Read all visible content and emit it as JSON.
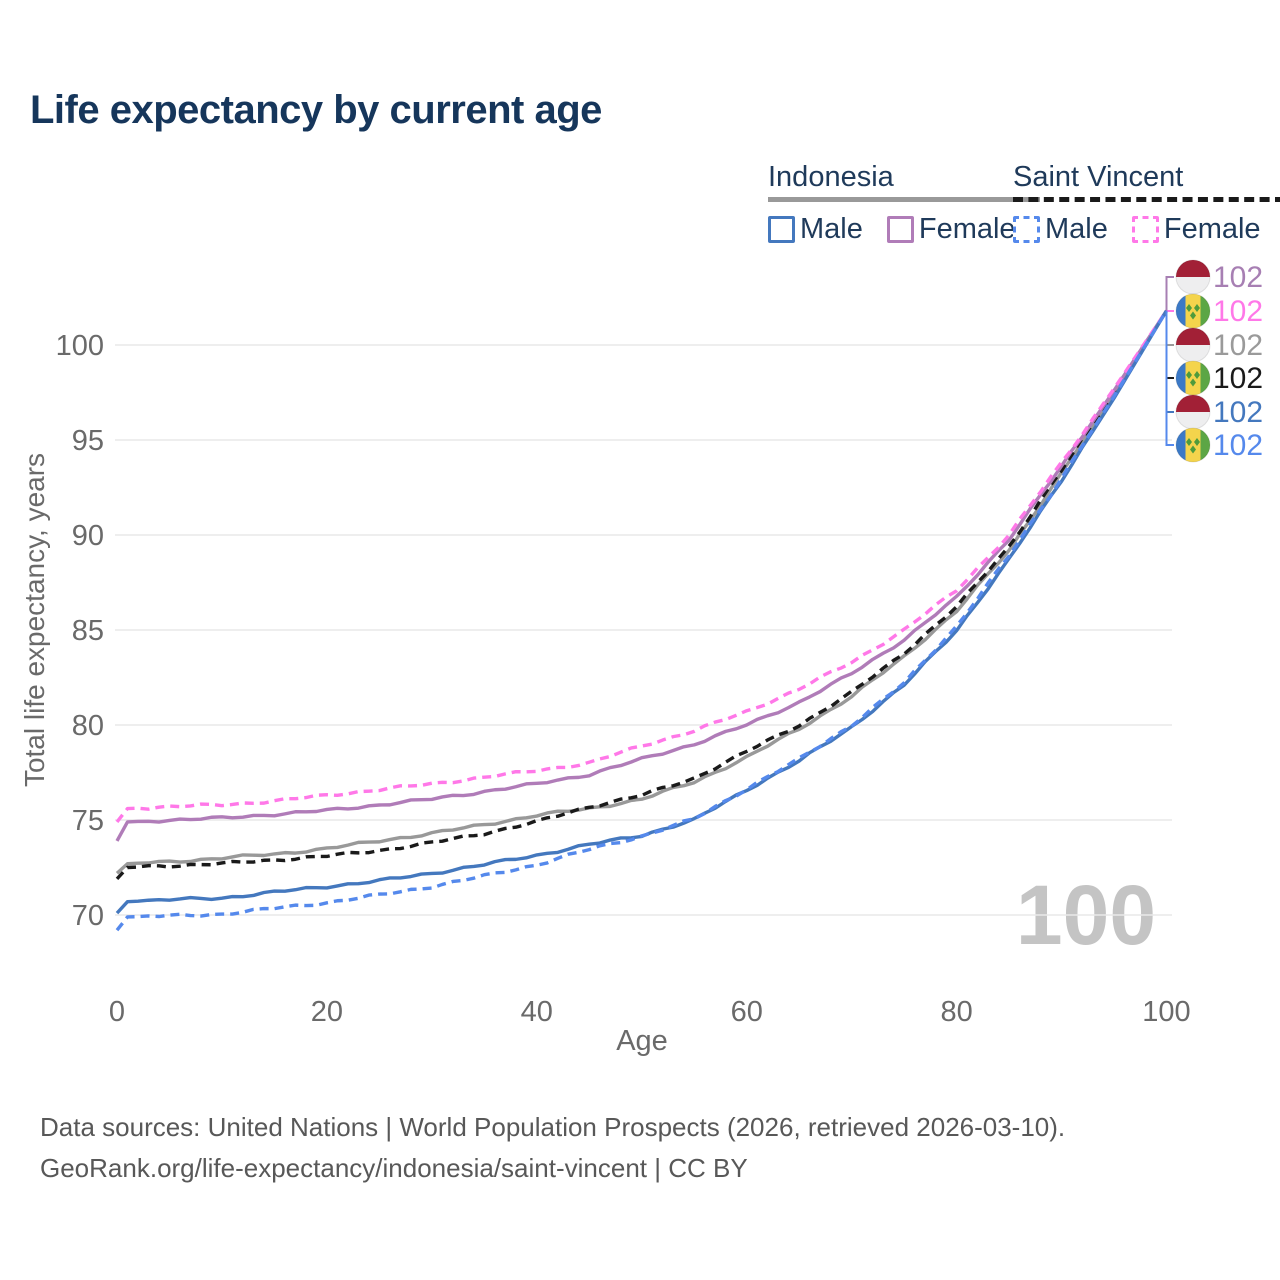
{
  "title": "Life expectancy by current age",
  "legend": {
    "groups": [
      {
        "title": "Indonesia",
        "line_style": "solid",
        "line_color": "#999999",
        "items": [
          {
            "label": "Male",
            "color": "#4478BE",
            "line_style": "solid"
          },
          {
            "label": "Female",
            "color": "#B07CB8",
            "line_style": "solid"
          }
        ]
      },
      {
        "title": "Saint Vincent",
        "line_style": "dashed",
        "line_color": "#1A1A1A",
        "items": [
          {
            "label": "Male",
            "color": "#5589EC",
            "line_style": "dashed"
          },
          {
            "label": "Female",
            "color": "#FF78E8",
            "line_style": "dashed"
          }
        ]
      }
    ]
  },
  "chart_data": {
    "type": "line",
    "title": "Life expectancy by current age",
    "xlabel": "Age",
    "ylabel": "Total life expectancy, years",
    "xlim": [
      0,
      100
    ],
    "ylim": [
      69,
      102
    ],
    "xticks": [
      0,
      20,
      40,
      60,
      80,
      100
    ],
    "yticks": [
      70,
      75,
      80,
      85,
      90,
      95,
      100
    ],
    "grid": "horizontal",
    "watermark": "100",
    "x": [
      0,
      1,
      5,
      10,
      15,
      20,
      25,
      30,
      35,
      40,
      45,
      50,
      55,
      60,
      65,
      70,
      75,
      80,
      85,
      90,
      95,
      100
    ],
    "series": [
      {
        "name": "Indonesia Total",
        "country": "Indonesia",
        "sex": "Total",
        "color": "#999999",
        "dash": "solid",
        "values": [
          72.2,
          72.7,
          72.8,
          73.0,
          73.2,
          73.5,
          73.9,
          74.3,
          74.75,
          75.25,
          75.6,
          76.1,
          77.0,
          78.3,
          79.8,
          81.5,
          83.6,
          86.0,
          89.2,
          93.25,
          97.4,
          101.8
        ]
      },
      {
        "name": "Saint Vincent Total",
        "country": "Saint Vincent",
        "sex": "Total",
        "color": "#1A1A1A",
        "dash": "dashed",
        "values": [
          71.9,
          72.5,
          72.6,
          72.7,
          72.9,
          73.1,
          73.4,
          73.8,
          74.3,
          74.9,
          75.7,
          76.3,
          77.2,
          78.6,
          80.0,
          81.7,
          83.8,
          86.2,
          89.4,
          93.4,
          97.5,
          101.8
        ]
      },
      {
        "name": "Indonesia Female",
        "country": "Indonesia",
        "sex": "Female",
        "color": "#B07CB8",
        "dash": "solid",
        "values": [
          73.9,
          74.9,
          75.0,
          75.1,
          75.3,
          75.5,
          75.8,
          76.1,
          76.5,
          76.9,
          77.4,
          78.2,
          79.0,
          80.0,
          81.2,
          82.7,
          84.5,
          86.7,
          89.8,
          93.6,
          97.6,
          101.8
        ]
      },
      {
        "name": "Saint Vincent Female",
        "country": "Saint Vincent",
        "sex": "Female",
        "color": "#FF78E8",
        "dash": "dashed",
        "values": [
          74.9,
          75.6,
          75.7,
          75.8,
          76.0,
          76.3,
          76.6,
          76.9,
          77.25,
          77.6,
          78.0,
          78.9,
          79.7,
          80.7,
          81.9,
          83.3,
          85.0,
          87.1,
          90.0,
          93.8,
          97.7,
          101.8
        ]
      },
      {
        "name": "Indonesia Male",
        "country": "Indonesia",
        "sex": "Male",
        "color": "#4478BE",
        "dash": "solid",
        "values": [
          70.1,
          70.7,
          70.8,
          70.9,
          71.2,
          71.5,
          71.8,
          72.2,
          72.65,
          73.15,
          73.7,
          74.2,
          75.0,
          76.6,
          78.1,
          79.9,
          82.1,
          85.0,
          88.7,
          92.9,
          97.2,
          101.8
        ]
      },
      {
        "name": "Saint Vincent Male",
        "country": "Saint Vincent",
        "sex": "Male",
        "color": "#5589EC",
        "dash": "dashed",
        "values": [
          69.2,
          69.9,
          69.95,
          70.05,
          70.35,
          70.65,
          71.05,
          71.5,
          72.05,
          72.65,
          73.45,
          74.15,
          75.05,
          76.65,
          78.2,
          80.0,
          82.2,
          85.2,
          88.9,
          93.0,
          97.3,
          101.8
        ]
      }
    ],
    "end_labels": [
      {
        "flag": "indonesia",
        "series": "Indonesia Female",
        "value": "102",
        "color": "#A77FB3"
      },
      {
        "flag": "saint-vincent",
        "series": "Saint Vincent Female",
        "value": "102",
        "color": "#FF78E8"
      },
      {
        "flag": "indonesia",
        "series": "Indonesia Total",
        "value": "102",
        "color": "#9A9A9A"
      },
      {
        "flag": "saint-vincent",
        "series": "Saint Vincent Total",
        "value": "102",
        "color": "#1A1A1A"
      },
      {
        "flag": "indonesia",
        "series": "Indonesia Male",
        "value": "102",
        "color": "#4478BE"
      },
      {
        "flag": "saint-vincent",
        "series": "Saint Vincent Male",
        "value": "102",
        "color": "#5589EC"
      }
    ],
    "flag_colors": {
      "indonesia_red": "#A22036",
      "indonesia_white": "#EEEEEF",
      "sv_blue": "#3B79C6",
      "sv_yellow": "#F4D44C",
      "sv_green": "#5CA645",
      "sv_diamond": "#4E9B3C"
    }
  },
  "footer": {
    "line1": "Data sources: United Nations | World Population Prospects (2026, retrieved 2026-03-10).",
    "line2": "GeoRank.org/life-expectancy/indonesia/saint-vincent | CC BY"
  }
}
